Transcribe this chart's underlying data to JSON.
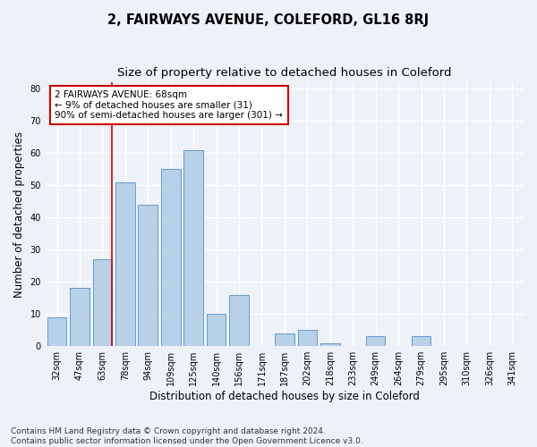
{
  "title": "2, FAIRWAYS AVENUE, COLEFORD, GL16 8RJ",
  "subtitle": "Size of property relative to detached houses in Coleford",
  "xlabel": "Distribution of detached houses by size in Coleford",
  "ylabel": "Number of detached properties",
  "categories": [
    "32sqm",
    "47sqm",
    "63sqm",
    "78sqm",
    "94sqm",
    "109sqm",
    "125sqm",
    "140sqm",
    "156sqm",
    "171sqm",
    "187sqm",
    "202sqm",
    "218sqm",
    "233sqm",
    "249sqm",
    "264sqm",
    "279sqm",
    "295sqm",
    "310sqm",
    "326sqm",
    "341sqm"
  ],
  "values": [
    9,
    18,
    27,
    51,
    44,
    55,
    61,
    10,
    16,
    0,
    4,
    5,
    1,
    0,
    3,
    0,
    3,
    0,
    0,
    0,
    0
  ],
  "bar_color": "#b8d0e8",
  "bar_edge_color": "#6699cc",
  "vline_x_index": 2,
  "vline_color": "#cc0000",
  "annotation_text": "2 FAIRWAYS AVENUE: 68sqm\n← 9% of detached houses are smaller (31)\n90% of semi-detached houses are larger (301) →",
  "annotation_box_facecolor": "#ffffff",
  "annotation_box_edge": "#cc0000",
  "bg_color": "#eef2f8",
  "plot_bg_color": "#eef2f8",
  "grid_color": "#ffffff",
  "footer": "Contains HM Land Registry data © Crown copyright and database right 2024.\nContains public sector information licensed under the Open Government Licence v3.0.",
  "ylim": [
    0,
    82
  ],
  "yticks": [
    0,
    10,
    20,
    30,
    40,
    50,
    60,
    70,
    80
  ],
  "title_fontsize": 10.5,
  "subtitle_fontsize": 9.5,
  "axis_label_fontsize": 8.5,
  "tick_fontsize": 7,
  "annotation_fontsize": 7.5,
  "footer_fontsize": 6.5
}
